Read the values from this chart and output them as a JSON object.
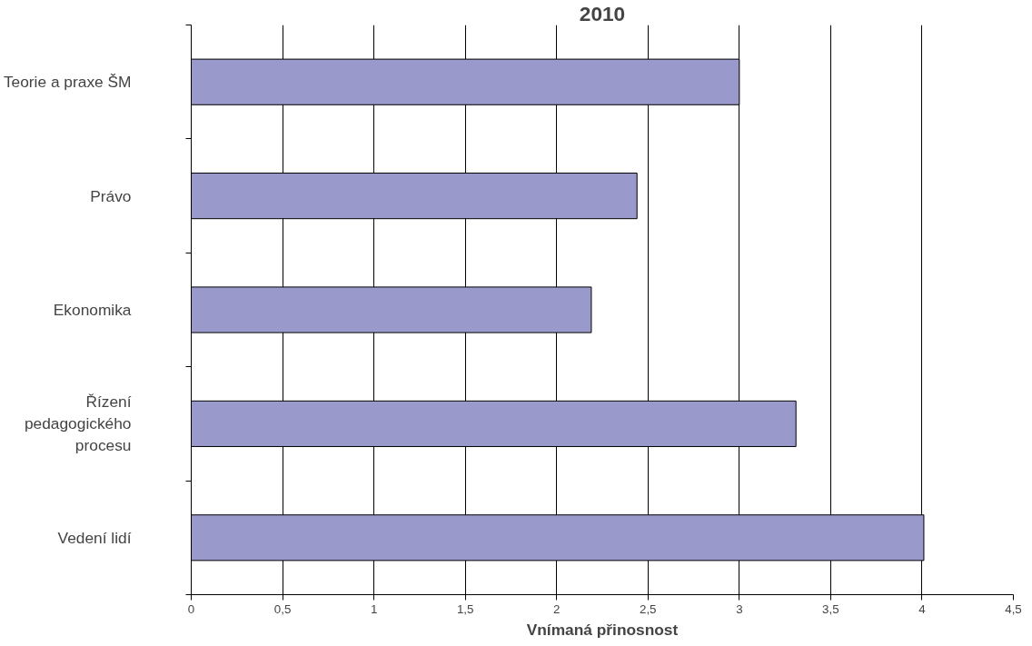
{
  "chart_data": {
    "type": "bar",
    "orientation": "horizontal",
    "title": "2010",
    "xlabel": "Vnímaná přinosnost",
    "categories": [
      "Teorie a praxe ŠM",
      "Právo",
      "Ekonomika",
      "Řízení\npedagogického\nprocesu",
      "Vedení lidí"
    ],
    "values": [
      3.0,
      2.44,
      2.19,
      3.31,
      4.01
    ],
    "color": "#9999cc",
    "xlim": [
      0,
      4.5
    ],
    "xticks": [
      0,
      {
        "value": 0.5,
        "label": "0,5"
      },
      1,
      {
        "value": 1.5,
        "label": "1,5"
      },
      2,
      {
        "value": 2.5,
        "label": "2,5"
      },
      3,
      {
        "value": 3.5,
        "label": "3,5"
      },
      4,
      {
        "value": 4.5,
        "label": "4,5"
      }
    ],
    "grid": "x"
  }
}
